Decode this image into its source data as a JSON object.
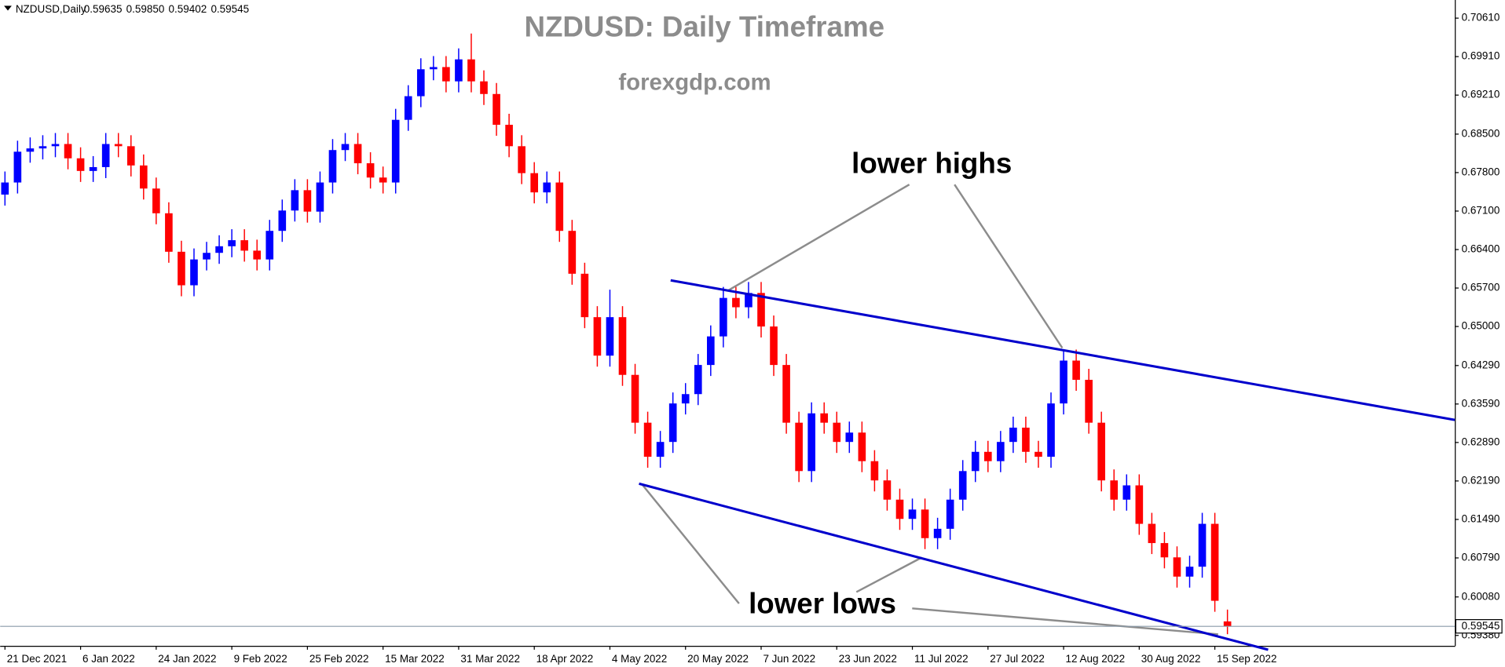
{
  "chart_data": {
    "type": "candlestick",
    "title": "NZDUSD: Daily Timeframe",
    "subtitle": "forexgdp.com",
    "header": {
      "symbol": "NZDUSD,Daily",
      "ohlc": [
        "0.59635",
        "0.59850",
        "0.59402",
        "0.59545"
      ]
    },
    "up_color": "#0000ff",
    "down_color": "#ff0000",
    "open": [
      0.674,
      0.6762,
      0.6818,
      0.6824,
      0.6828,
      0.6832,
      0.6806,
      0.6783,
      0.679,
      0.6832,
      0.6828,
      0.6793,
      0.6751,
      0.6706,
      0.6636,
      0.6575,
      0.6622,
      0.6634,
      0.6646,
      0.6657,
      0.6638,
      0.6622,
      0.6674,
      0.6711,
      0.6748,
      0.6709,
      0.6762,
      0.6821,
      0.6832,
      0.6797,
      0.6771,
      0.6762,
      0.6876,
      0.6919,
      0.6968,
      0.6972,
      0.6946,
      0.6986,
      0.6946,
      0.6923,
      0.6867,
      0.6828,
      0.6779,
      0.6744,
      0.6762,
      0.6674,
      0.6596,
      0.6517,
      0.6447,
      0.6517,
      0.6412,
      0.6325,
      0.6263,
      0.629,
      0.636,
      0.6377,
      0.643,
      0.6482,
      0.6552,
      0.6535,
      0.6561,
      0.65,
      0.643,
      0.6325,
      0.6237,
      0.6342,
      0.6325,
      0.629,
      0.6307,
      0.6255,
      0.622,
      0.6185,
      0.615,
      0.6167,
      0.6115,
      0.6132,
      0.6185,
      0.6237,
      0.6272,
      0.6255,
      0.629,
      0.6316,
      0.6272,
      0.6263,
      0.636,
      0.6438,
      0.6403,
      0.6325,
      0.622,
      0.6185,
      0.6211,
      0.6141,
      0.6106,
      0.608,
      0.6045,
      0.6063,
      0.6141,
      0.59635
    ],
    "high": [
      0.6782,
      0.6838,
      0.6844,
      0.6848,
      0.6852,
      0.6852,
      0.6826,
      0.681,
      0.6852,
      0.6852,
      0.6848,
      0.6813,
      0.6771,
      0.6726,
      0.6656,
      0.6642,
      0.6654,
      0.6666,
      0.6677,
      0.6677,
      0.6658,
      0.6694,
      0.6731,
      0.6768,
      0.6768,
      0.6782,
      0.6841,
      0.6852,
      0.6852,
      0.6817,
      0.6791,
      0.6896,
      0.6939,
      0.6988,
      0.6992,
      0.6992,
      0.7006,
      0.7033,
      0.6966,
      0.6943,
      0.6887,
      0.6848,
      0.6799,
      0.6782,
      0.6782,
      0.6694,
      0.6616,
      0.6537,
      0.6567,
      0.6537,
      0.6432,
      0.6345,
      0.631,
      0.638,
      0.6397,
      0.645,
      0.6502,
      0.6572,
      0.6572,
      0.6581,
      0.6581,
      0.652,
      0.645,
      0.6345,
      0.6362,
      0.6362,
      0.6345,
      0.6327,
      0.6327,
      0.6275,
      0.624,
      0.6205,
      0.6187,
      0.6187,
      0.6152,
      0.6205,
      0.6257,
      0.6292,
      0.6292,
      0.631,
      0.6336,
      0.6336,
      0.6292,
      0.638,
      0.6458,
      0.6458,
      0.6423,
      0.6345,
      0.624,
      0.6231,
      0.6231,
      0.6161,
      0.6126,
      0.61,
      0.6083,
      0.6161,
      0.6161,
      0.5985
    ],
    "low": [
      0.672,
      0.6742,
      0.6798,
      0.6804,
      0.6808,
      0.6786,
      0.6763,
      0.6763,
      0.677,
      0.6808,
      0.6773,
      0.6731,
      0.6686,
      0.6616,
      0.6555,
      0.6555,
      0.6602,
      0.6614,
      0.6626,
      0.6618,
      0.6602,
      0.6602,
      0.6654,
      0.6691,
      0.6689,
      0.6689,
      0.6742,
      0.6801,
      0.6777,
      0.6751,
      0.6742,
      0.6742,
      0.6856,
      0.6899,
      0.6948,
      0.6926,
      0.6926,
      0.6926,
      0.6903,
      0.6847,
      0.6808,
      0.6759,
      0.6724,
      0.6724,
      0.6654,
      0.6576,
      0.6497,
      0.6427,
      0.6427,
      0.6392,
      0.6305,
      0.6243,
      0.6243,
      0.627,
      0.634,
      0.6357,
      0.641,
      0.6462,
      0.6515,
      0.6515,
      0.648,
      0.641,
      0.6305,
      0.6217,
      0.6217,
      0.6305,
      0.627,
      0.627,
      0.6235,
      0.62,
      0.6165,
      0.613,
      0.613,
      0.6095,
      0.6095,
      0.6112,
      0.6165,
      0.6217,
      0.6235,
      0.6235,
      0.627,
      0.6252,
      0.6243,
      0.6243,
      0.634,
      0.6383,
      0.6305,
      0.62,
      0.6165,
      0.6165,
      0.6121,
      0.6086,
      0.606,
      0.6025,
      0.6025,
      0.6043,
      0.5981,
      0.59402
    ],
    "close": [
      0.6762,
      0.6818,
      0.6824,
      0.6828,
      0.6832,
      0.6806,
      0.6783,
      0.679,
      0.6832,
      0.6828,
      0.6793,
      0.6751,
      0.6706,
      0.6636,
      0.6575,
      0.6622,
      0.6634,
      0.6646,
      0.6657,
      0.6638,
      0.6622,
      0.6674,
      0.6711,
      0.6748,
      0.6709,
      0.6762,
      0.6821,
      0.6832,
      0.6797,
      0.6771,
      0.6762,
      0.6876,
      0.6919,
      0.6968,
      0.6972,
      0.6946,
      0.6986,
      0.6946,
      0.6923,
      0.6867,
      0.6828,
      0.6779,
      0.6744,
      0.6762,
      0.6674,
      0.6596,
      0.6517,
      0.6447,
      0.6517,
      0.6412,
      0.6325,
      0.6263,
      0.629,
      0.636,
      0.6377,
      0.643,
      0.6482,
      0.6552,
      0.6535,
      0.6561,
      0.65,
      0.643,
      0.6325,
      0.6237,
      0.6342,
      0.6325,
      0.629,
      0.6307,
      0.6255,
      0.622,
      0.6185,
      0.615,
      0.6167,
      0.6115,
      0.6132,
      0.6185,
      0.6237,
      0.6272,
      0.6255,
      0.629,
      0.6316,
      0.6272,
      0.6263,
      0.636,
      0.6438,
      0.6403,
      0.6325,
      0.622,
      0.6185,
      0.6211,
      0.6141,
      0.6106,
      0.608,
      0.6045,
      0.6063,
      0.6141,
      0.6001,
      0.59545
    ],
    "xlim": [
      -0.38,
      115.04
    ],
    "xticks": [
      {
        "value": 0,
        "label": "21 Dec 2021"
      },
      {
        "value": 6,
        "label": "6 Jan 2022"
      },
      {
        "value": 12,
        "label": "24 Jan 2022"
      },
      {
        "value": 18,
        "label": "9 Feb 2022"
      },
      {
        "value": 24,
        "label": "25 Feb 2022"
      },
      {
        "value": 30,
        "label": "15 Mar 2022"
      },
      {
        "value": 36,
        "label": "31 Mar 2022"
      },
      {
        "value": 42,
        "label": "18 Apr 2022"
      },
      {
        "value": 48,
        "label": "4 May 2022"
      },
      {
        "value": 54,
        "label": "20 May 2022"
      },
      {
        "value": 60,
        "label": "7 Jun 2022"
      },
      {
        "value": 66,
        "label": "23 Jun 2022"
      },
      {
        "value": 72,
        "label": "11 Jul 2022"
      },
      {
        "value": 78,
        "label": "27 Jul 2022"
      },
      {
        "value": 84,
        "label": "12 Aug 2022"
      },
      {
        "value": 90,
        "label": "30 Aug 2022"
      },
      {
        "value": 96,
        "label": "15 Sep 2022"
      }
    ],
    "ylim": [
      0.5919,
      0.7094
    ],
    "yticks": [
      {
        "value": 0.7061,
        "label": "0.70610"
      },
      {
        "value": 0.6991,
        "label": "0.69910"
      },
      {
        "value": 0.6921,
        "label": "0.69210"
      },
      {
        "value": 0.685,
        "label": "0.68500"
      },
      {
        "value": 0.678,
        "label": "0.67800"
      },
      {
        "value": 0.671,
        "label": "0.67100"
      },
      {
        "value": 0.664,
        "label": "0.66400"
      },
      {
        "value": 0.657,
        "label": "0.65700"
      },
      {
        "value": 0.65,
        "label": "0.65000"
      },
      {
        "value": 0.6429,
        "label": "0.64290"
      },
      {
        "value": 0.6359,
        "label": "0.63590"
      },
      {
        "value": 0.6289,
        "label": "0.62890"
      },
      {
        "value": 0.6219,
        "label": "0.62190"
      },
      {
        "value": 0.6149,
        "label": "0.61490"
      },
      {
        "value": 0.6079,
        "label": "0.60790"
      },
      {
        "value": 0.6008,
        "label": "0.60080"
      },
      {
        "value": 0.5938,
        "label": "0.59380"
      }
    ],
    "current_price": {
      "value": 0.59545,
      "label": "0.59545"
    },
    "trendlines": [
      {
        "color": "#0000cc",
        "x": [
          52.82,
          115.04
        ],
        "y": [
          0.6584,
          0.633
        ]
      },
      {
        "color": "#0000cc",
        "x": [
          50.31,
          100.23
        ],
        "y": [
          0.6214,
          0.5912
        ]
      }
    ],
    "annotations": [
      "lower highs",
      "lower lows"
    ]
  }
}
